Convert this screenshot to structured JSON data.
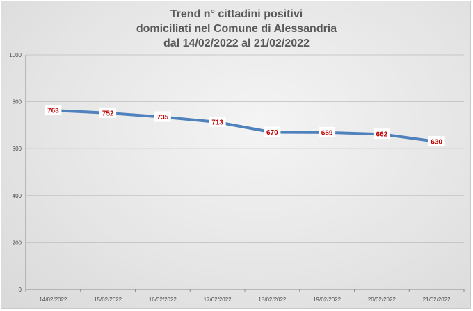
{
  "chart_data": {
    "type": "line",
    "title_lines": [
      "Trend n° cittadini positivi",
      "domiciliati nel Comune di Alessandria",
      "dal 14/02/2022 al 21/02/2022"
    ],
    "categories": [
      "14/02/2022",
      "15/02/2022",
      "16/02/2022",
      "17/02/2022",
      "18/02/2022",
      "19/02/2022",
      "20/02/2022",
      "21/02/2022"
    ],
    "series": [
      {
        "values": [
          763,
          752,
          735,
          713,
          670,
          669,
          662,
          630
        ]
      }
    ],
    "data_labels": [
      "763",
      "752",
      "735",
      "713",
      "670",
      "669",
      "662",
      "630"
    ],
    "ylim": [
      0,
      1000
    ],
    "y_ticks": [
      "0",
      "200",
      "400",
      "600",
      "800",
      "1000"
    ],
    "grid": true,
    "legend": "none",
    "colors": {
      "line": "#4f81bd",
      "label": "#c00000",
      "grid": "#bdbdbd"
    }
  }
}
